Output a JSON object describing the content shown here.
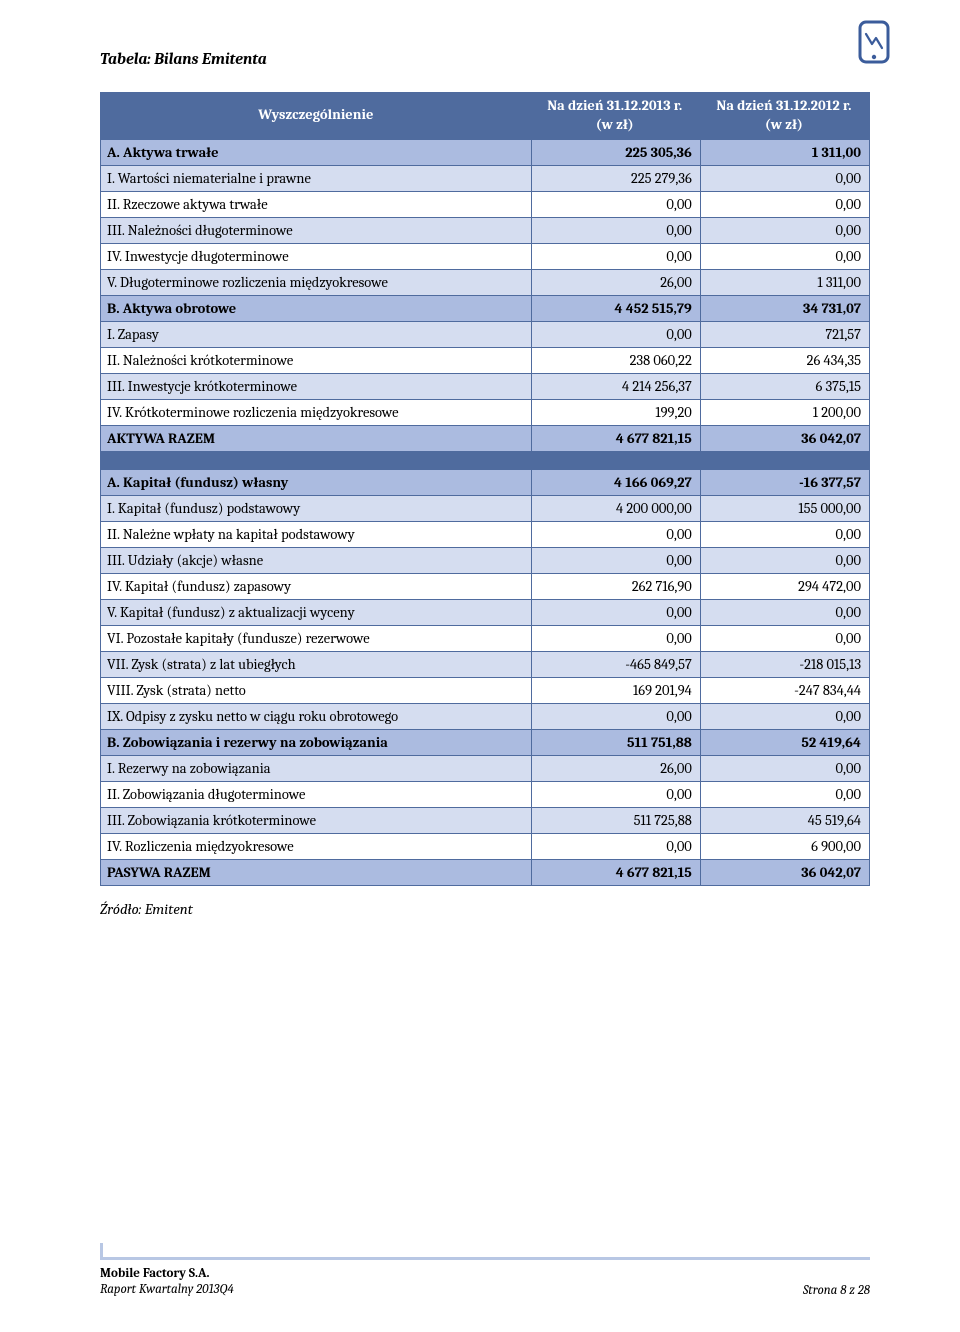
{
  "title": "Tabela: Bilans Emitenta",
  "columns": {
    "label": "Wyszczególnienie",
    "col1_line1": "Na dzień 31.12.2013 r.",
    "col1_line2": "(w zł)",
    "col2_line1": "Na dzień 31.12.2012 r.",
    "col2_line2": "(w zł)"
  },
  "rows_top": [
    {
      "label": "A. Aktywa trwałe",
      "v1": "225 305,36",
      "v2": "1 311,00",
      "bold": true,
      "shade": "med"
    },
    {
      "label": "I. Wartości niematerialne i prawne",
      "v1": "225 279,36",
      "v2": "0,00",
      "bold": false,
      "shade": "light"
    },
    {
      "label": "II. Rzeczowe aktywa trwałe",
      "v1": "0,00",
      "v2": "0,00",
      "bold": false,
      "shade": "none"
    },
    {
      "label": "III. Należności długoterminowe",
      "v1": "0,00",
      "v2": "0,00",
      "bold": false,
      "shade": "light"
    },
    {
      "label": "IV. Inwestycje długoterminowe",
      "v1": "0,00",
      "v2": "0,00",
      "bold": false,
      "shade": "none"
    },
    {
      "label": "V. Długoterminowe rozliczenia międzyokresowe",
      "v1": "26,00",
      "v2": "1 311,00",
      "bold": false,
      "shade": "light"
    },
    {
      "label": "B. Aktywa obrotowe",
      "v1": "4 452 515,79",
      "v2": "34 731,07",
      "bold": true,
      "shade": "med"
    },
    {
      "label": "I. Zapasy",
      "v1": "0,00",
      "v2": "721,57",
      "bold": false,
      "shade": "light"
    },
    {
      "label": "II. Należności krótkoterminowe",
      "v1": "238 060,22",
      "v2": "26 434,35",
      "bold": false,
      "shade": "none"
    },
    {
      "label": "III. Inwestycje krótkoterminowe",
      "v1": "4 214 256,37",
      "v2": "6 375,15",
      "bold": false,
      "shade": "light"
    },
    {
      "label": "IV. Krótkoterminowe rozliczenia międzyokresowe",
      "v1": "199,20",
      "v2": "1 200,00",
      "bold": false,
      "shade": "none"
    },
    {
      "label": "AKTYWA RAZEM",
      "v1": "4 677 821,15",
      "v2": "36 042,07",
      "bold": true,
      "shade": "med"
    }
  ],
  "rows_bottom": [
    {
      "label": "A. Kapitał (fundusz) własny",
      "v1": "4 166 069,27",
      "v2": "-16 377,57",
      "bold": true,
      "shade": "med"
    },
    {
      "label": "I. Kapitał (fundusz) podstawowy",
      "v1": "4 200 000,00",
      "v2": "155 000,00",
      "bold": false,
      "shade": "light"
    },
    {
      "label": "II. Należne wpłaty na kapitał podstawowy",
      "v1": "0,00",
      "v2": "0,00",
      "bold": false,
      "shade": "none"
    },
    {
      "label": "III. Udziały (akcje) własne",
      "v1": "0,00",
      "v2": "0,00",
      "bold": false,
      "shade": "light"
    },
    {
      "label": "IV. Kapitał (fundusz) zapasowy",
      "v1": "262 716,90",
      "v2": "294 472,00",
      "bold": false,
      "shade": "none"
    },
    {
      "label": "V. Kapitał (fundusz) z aktualizacji wyceny",
      "v1": "0,00",
      "v2": "0,00",
      "bold": false,
      "shade": "light"
    },
    {
      "label": "VI. Pozostałe kapitały (fundusze) rezerwowe",
      "v1": "0,00",
      "v2": "0,00",
      "bold": false,
      "shade": "none"
    },
    {
      "label": "VII. Zysk (strata) z lat ubiegłych",
      "v1": "-465 849,57",
      "v2": "-218 015,13",
      "bold": false,
      "shade": "light"
    },
    {
      "label": "VIII. Zysk (strata) netto",
      "v1": "169 201,94",
      "v2": "-247 834,44",
      "bold": false,
      "shade": "none"
    },
    {
      "label": "IX. Odpisy z zysku netto w ciągu roku obrotowego",
      "v1": "0,00",
      "v2": "0,00",
      "bold": false,
      "shade": "light"
    },
    {
      "label": "B. Zobowiązania i rezerwy na zobowiązania",
      "v1": "511 751,88",
      "v2": "52 419,64",
      "bold": true,
      "shade": "med"
    },
    {
      "label": "I. Rezerwy na zobowiązania",
      "v1": "26,00",
      "v2": "0,00",
      "bold": false,
      "shade": "light"
    },
    {
      "label": "II. Zobowiązania długoterminowe",
      "v1": "0,00",
      "v2": "0,00",
      "bold": false,
      "shade": "none"
    },
    {
      "label": "III. Zobowiązania krótkoterminowe",
      "v1": "511 725,88",
      "v2": "45 519,64",
      "bold": false,
      "shade": "light"
    },
    {
      "label": "IV. Rozliczenia międzyokresowe",
      "v1": "0,00",
      "v2": "6 900,00",
      "bold": false,
      "shade": "none"
    },
    {
      "label": "PASYWA RAZEM",
      "v1": "4 677 821,15",
      "v2": "36 042,07",
      "bold": true,
      "shade": "med"
    }
  ],
  "source": "Źródło: Emitent",
  "footer": {
    "company": "Mobile Factory S.A.",
    "report": "Raport Kwartalny 2013Q4",
    "page": "Strona 8 z 28"
  },
  "colors": {
    "header_bg": "#4f6b9e",
    "shade_med": "#abbbe0",
    "shade_light": "#d5ddf0",
    "border": "#4f6b9e"
  }
}
